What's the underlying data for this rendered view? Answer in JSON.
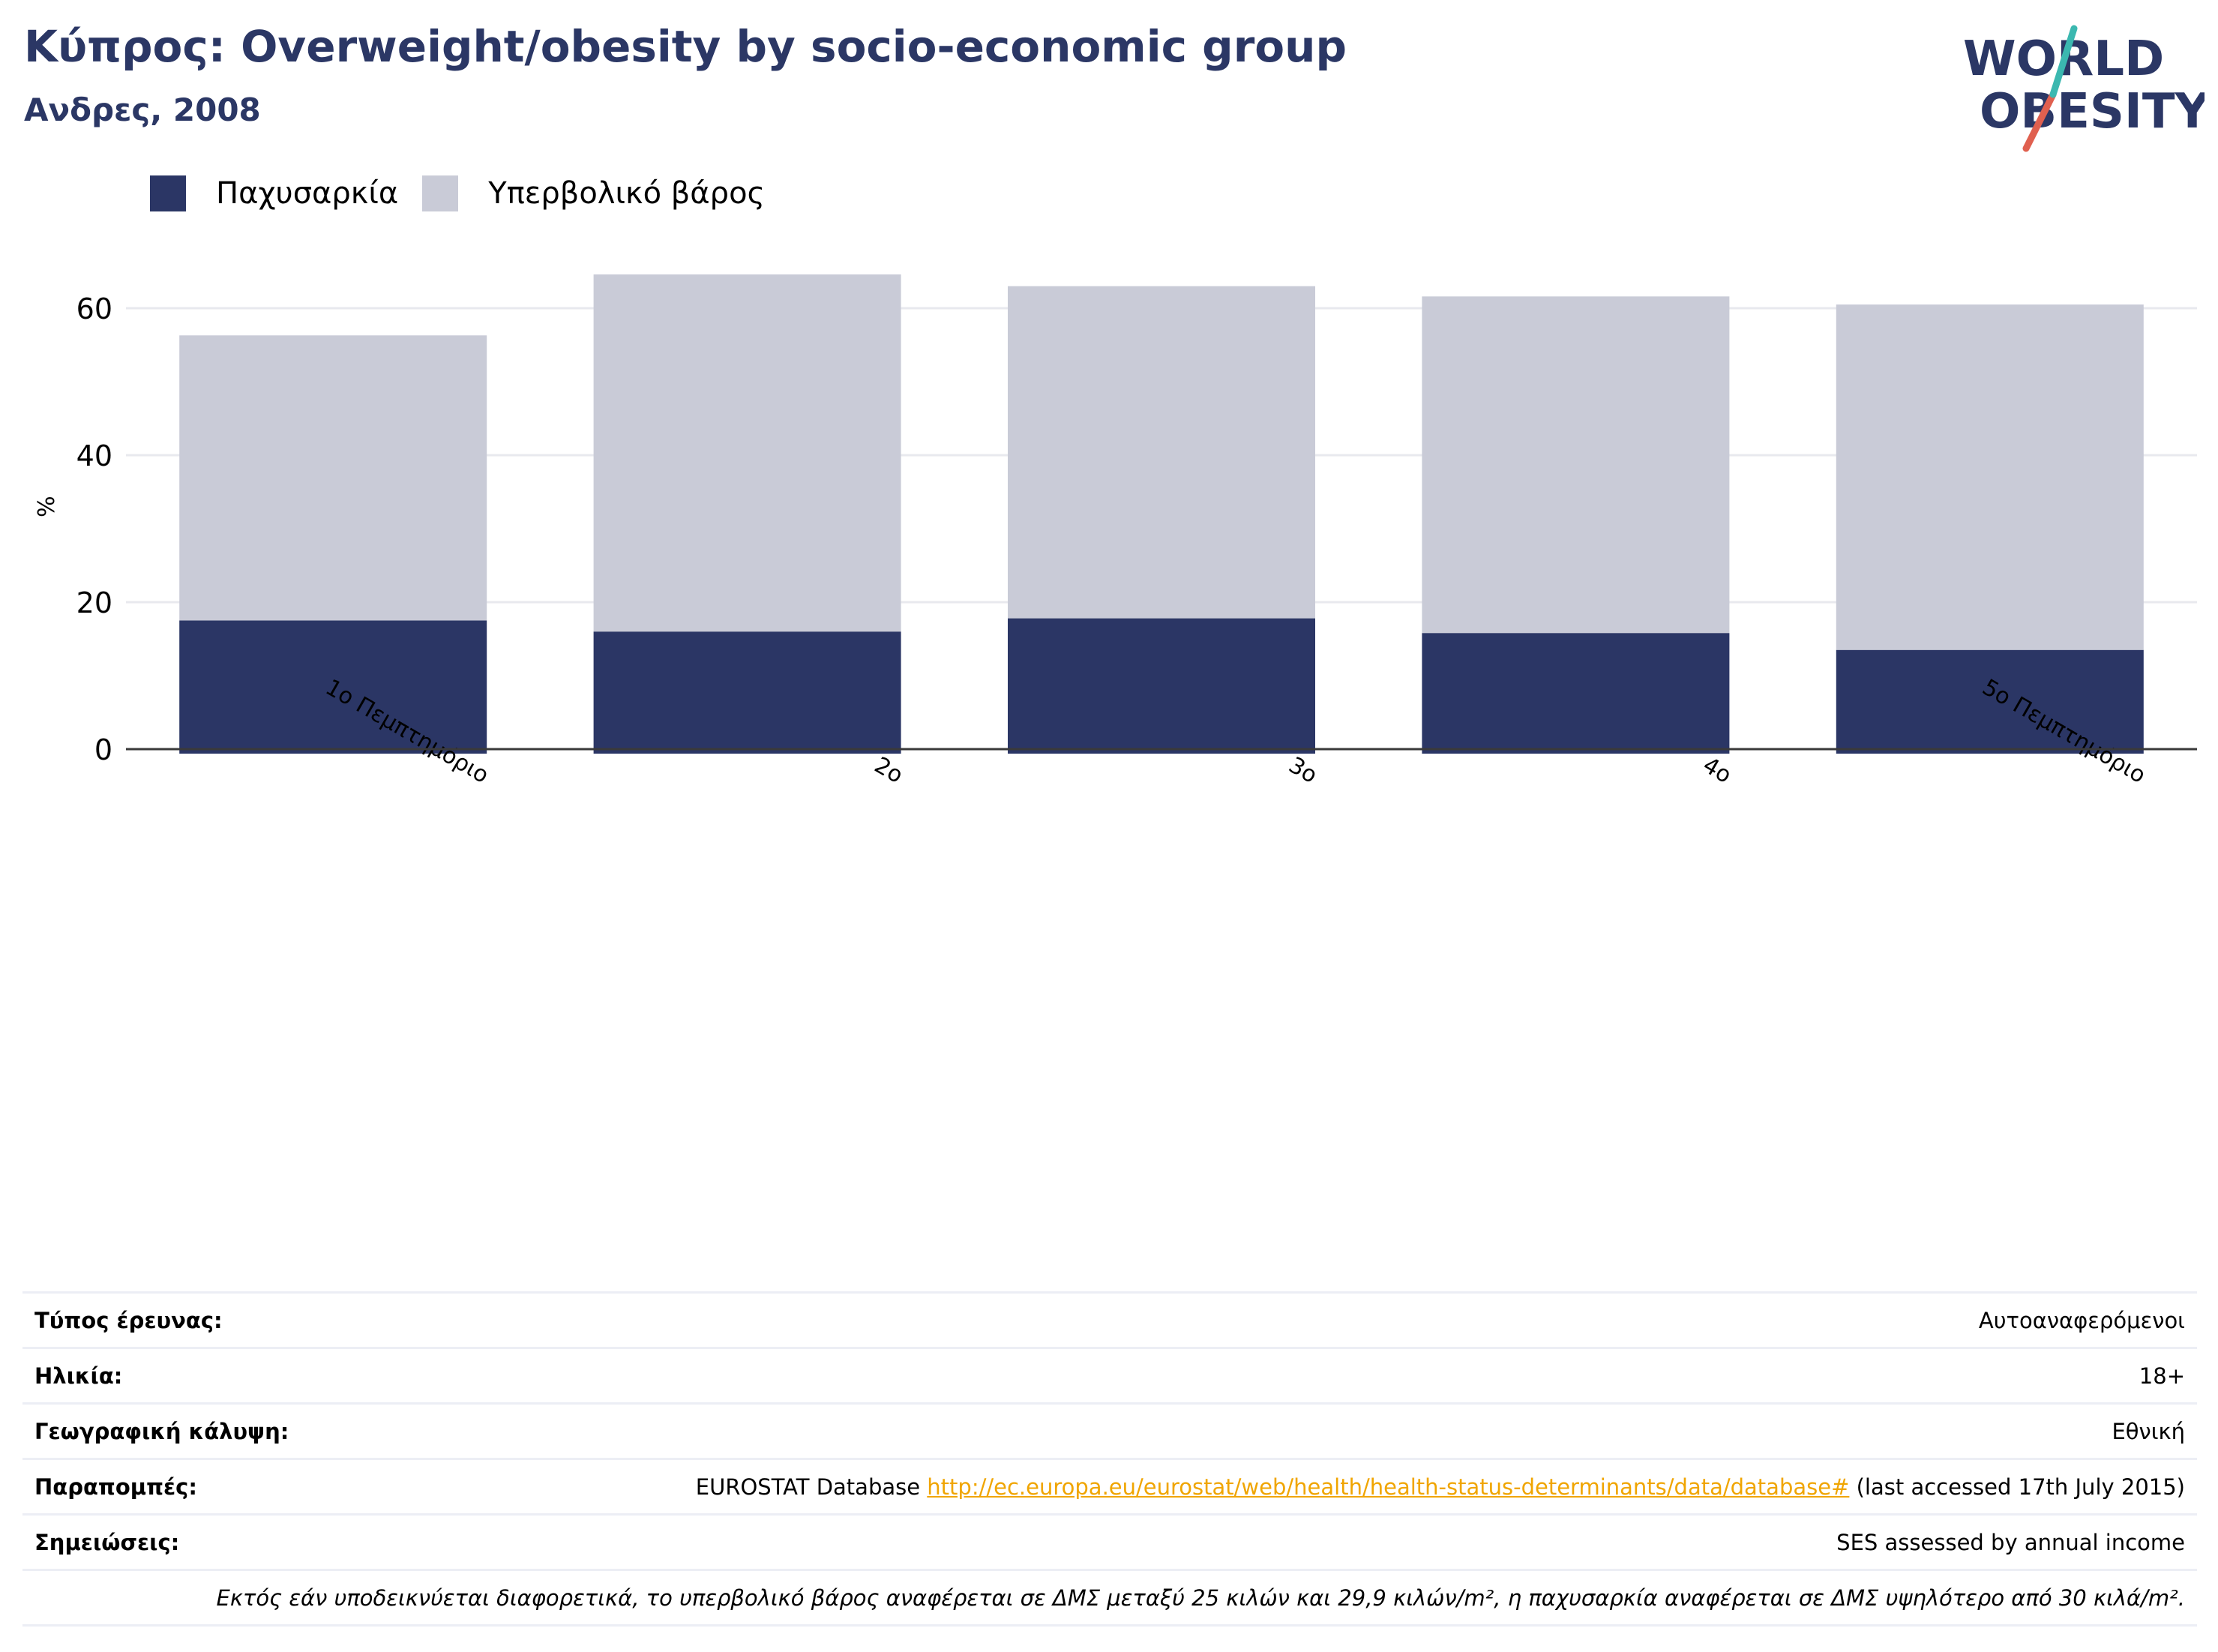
{
  "header": {
    "title": "Κύπρος: Overweight/obesity by socio-economic group",
    "subtitle": "Ανδρες, 2008"
  },
  "logo": {
    "line1": "WORLD",
    "line2": "OBESITY"
  },
  "legend": [
    {
      "label": "Παχυσαρκία",
      "color": "#2b3665"
    },
    {
      "label": "Υπερβολικό βάρος",
      "color": "#c9cbd7"
    }
  ],
  "chart_data": {
    "type": "bar",
    "stacked": true,
    "categories": [
      "1ο Πεμπτημόριο",
      "2ο",
      "3ο",
      "4ο",
      "5ο Πεμπτημόριο"
    ],
    "series": [
      {
        "name": "Παχυσαρκία",
        "values": [
          17.5,
          16.0,
          17.8,
          15.8,
          13.5
        ],
        "color": "#2b3665"
      },
      {
        "name": "Υπερβολικό βάρος",
        "values": [
          38.8,
          48.6,
          45.2,
          45.8,
          47.0
        ],
        "color": "#c9cbd7"
      }
    ],
    "ylabel": "%",
    "yticks": [
      0,
      20,
      40,
      60
    ],
    "ylim": [
      0,
      68
    ],
    "grid": true,
    "legend_position": "top-left"
  },
  "meta": {
    "survey_type_label": "Τύπος έρευνας:",
    "survey_type_value": "Αυτοαναφερόμενοι",
    "age_label": "Ηλικία:",
    "age_value": "18+",
    "coverage_label": "Γεωγραφική κάλυψη:",
    "coverage_value": "Εθνική",
    "references_label": "Παραπομπές:",
    "references_prefix": "EUROSTAT Database ",
    "references_link": "http://ec.europa.eu/eurostat/web/health/health-status-determinants/data/database#",
    "references_suffix": " (last accessed 17th July 2015)",
    "notes_label": "Σημειώσεις:",
    "notes_value": "SES assessed by annual income",
    "footnote": "Εκτός εάν υποδεικνύεται διαφορετικά, το υπερβολικό βάρος αναφέρεται σε ΔΜΣ μεταξύ 25 κιλών και 29,9 κιλών/m², η παχυσαρκία αναφέρεται σε ΔΜΣ υψηλότερο από 30 κιλά/m²."
  }
}
